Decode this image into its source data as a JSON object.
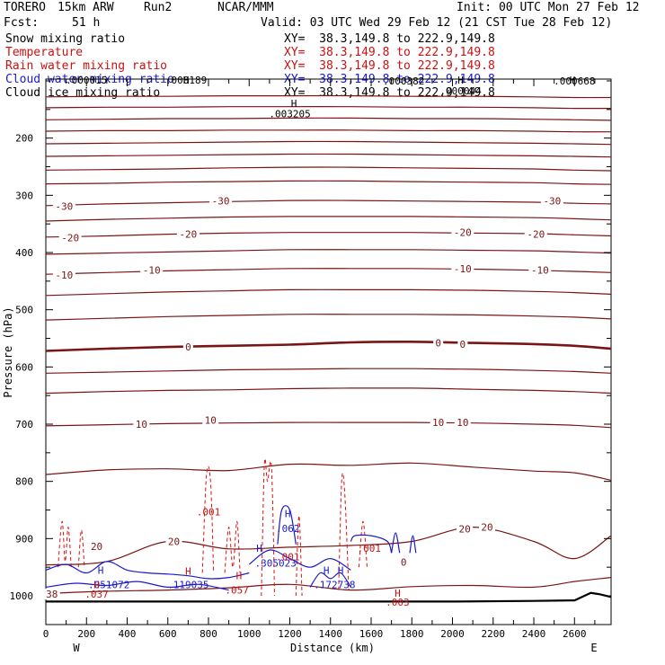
{
  "header": {
    "model": "TORERO",
    "resolution": "15km ARW",
    "run": "Run2",
    "org": "NCAR/MMM",
    "init": "Init: 00 UTC Mon 27 Feb 12",
    "fcst_label": "Fcst:",
    "fcst_hours": "51 h",
    "valid": "Valid: 03 UTC Wed 29 Feb 12 (21 CST Tue 28 Feb 12)"
  },
  "legend": [
    {
      "label": "Snow mixing ratio",
      "xy": "XY=  38.3,149.8 to 222.9,149.8",
      "color": "#000000"
    },
    {
      "label": "Temperature",
      "xy": "XY=  38.3,149.8 to 222.9,149.8",
      "color": "#cc1111"
    },
    {
      "label": "Rain water mixing ratio",
      "xy": "XY=  38.3,149.8 to 222.9,149.8",
      "color": "#cc1111"
    },
    {
      "label": "Cloud water mixing ratio",
      "xy": "XY=  38.3,149.8 to 222.9,149.8",
      "color": "#1a1acc"
    },
    {
      "label": "Cloud ice mixing ratio",
      "xy": "XY=  38.3,149.8 to 222.9,149.8",
      "color": "#000000"
    }
  ],
  "chart_data": {
    "type": "cross-section contour",
    "xlabel": "Distance (km)",
    "ylabel": "Pressure (hPa)",
    "xlim": [
      0,
      2780
    ],
    "ylim": [
      1015,
      100
    ],
    "x_ticks": [
      0,
      100,
      200,
      300,
      400,
      500,
      600,
      700,
      800,
      900,
      1000,
      1100,
      1200,
      1300,
      1400,
      1500,
      1600,
      1700,
      1800,
      1900,
      2000,
      2100,
      2200,
      2300,
      2400,
      2500,
      2600,
      2700
    ],
    "x_tick_labels": [
      "0",
      "200",
      "400",
      "600",
      "800",
      "1000",
      "1200",
      "1400",
      "1600",
      "1800",
      "2000",
      "2200",
      "2400",
      "2600"
    ],
    "x_tick_label_values": [
      0,
      200,
      400,
      600,
      800,
      1000,
      1200,
      1400,
      1600,
      1800,
      2000,
      2200,
      2400,
      2600
    ],
    "y_ticks": [
      100,
      150,
      200,
      250,
      300,
      350,
      400,
      450,
      500,
      550,
      600,
      650,
      700,
      750,
      800,
      850,
      900,
      950,
      1000
    ],
    "y_tick_labels": [
      "200",
      "300",
      "400",
      "500",
      "600",
      "700",
      "800",
      "900",
      "1000"
    ],
    "y_tick_label_values": [
      200,
      300,
      400,
      500,
      600,
      700,
      800,
      900,
      1000
    ],
    "direction_left": "W",
    "direction_right": "E",
    "x_nodes": [
      0,
      300,
      600,
      900,
      1200,
      1500,
      1800,
      2100,
      2400,
      2600,
      2780
    ],
    "isotherms": [
      {
        "p": [
          128,
          127,
          127,
          126,
          126,
          126,
          127,
          127,
          128,
          129,
          129
        ]
      },
      {
        "p": [
          147,
          146,
          146,
          145,
          145,
          145,
          146,
          146,
          147,
          148,
          148
        ]
      },
      {
        "p": [
          168,
          167,
          166,
          166,
          165,
          165,
          166,
          166,
          167,
          168,
          169
        ]
      },
      {
        "p": [
          188,
          187,
          187,
          186,
          186,
          186,
          187,
          187,
          188,
          189,
          189
        ]
      },
      {
        "p": [
          210,
          209,
          208,
          207,
          206,
          206,
          207,
          208,
          209,
          210,
          211
        ]
      },
      {
        "p": [
          232,
          231,
          230,
          229,
          228,
          228,
          229,
          230,
          231,
          232,
          233
        ]
      },
      {
        "p": [
          256,
          255,
          254,
          252,
          251,
          251,
          252,
          253,
          254,
          256,
          257
        ]
      },
      {
        "p": [
          280,
          279,
          277,
          276,
          275,
          275,
          276,
          277,
          278,
          280,
          281
        ]
      },
      {
        "p": [
          318,
          315,
          313,
          311,
          309,
          309,
          310,
          311,
          312,
          314,
          315
        ],
        "label": "-30"
      },
      {
        "p": [
          345,
          342,
          340,
          338,
          337,
          337,
          337,
          338,
          339,
          341,
          343
        ]
      },
      {
        "p": [
          373,
          371,
          368,
          366,
          365,
          365,
          365,
          366,
          367,
          369,
          371
        ],
        "label": "-20"
      },
      {
        "p": [
          403,
          401,
          399,
          397,
          395,
          395,
          395,
          396,
          397,
          399,
          401
        ]
      },
      {
        "p": [
          438,
          435,
          432,
          430,
          428,
          428,
          428,
          429,
          431,
          433,
          435
        ],
        "label": "-10"
      },
      {
        "p": [
          475,
          472,
          469,
          467,
          465,
          465,
          465,
          466,
          468,
          470,
          473
        ]
      },
      {
        "p": [
          518,
          515,
          512,
          510,
          508,
          508,
          508,
          509,
          511,
          513,
          516
        ]
      },
      {
        "p": [
          572,
          568,
          565,
          563,
          561,
          557,
          556,
          558,
          560,
          563,
          568
        ],
        "label": "0",
        "bold": true
      },
      {
        "p": [
          611,
          609,
          607,
          605,
          604,
          603,
          603,
          604,
          606,
          608,
          611
        ]
      },
      {
        "p": [
          646,
          643,
          641,
          640,
          638,
          637,
          637,
          639,
          641,
          643,
          646
        ]
      },
      {
        "p": [
          703,
          701,
          699,
          698,
          697,
          697,
          697,
          698,
          700,
          702,
          706
        ],
        "label": "10"
      },
      {
        "p": [
          788,
          780,
          778,
          781,
          770,
          772,
          768,
          775,
          782,
          785,
          798
        ]
      },
      {
        "p": [
          946,
          940,
          905,
          918,
          915,
          912,
          905,
          880,
          905,
          935,
          895
        ],
        "label": "20"
      },
      {
        "p": [
          996,
          992,
          990,
          986,
          980,
          990,
          984,
          982,
          985,
          975,
          968
        ]
      }
    ],
    "contour_labels": [
      {
        "text": "-30",
        "x": 90,
        "p": 319
      },
      {
        "text": "-30",
        "x": 860,
        "p": 310
      },
      {
        "text": "-30",
        "x": 2490,
        "p": 310
      },
      {
        "text": "-20",
        "x": 120,
        "p": 374
      },
      {
        "text": "-20",
        "x": 700,
        "p": 368
      },
      {
        "text": "-20",
        "x": 2050,
        "p": 365
      },
      {
        "text": "-20",
        "x": 2410,
        "p": 368
      },
      {
        "text": "-10",
        "x": 90,
        "p": 439
      },
      {
        "text": "-10",
        "x": 520,
        "p": 431
      },
      {
        "text": "-10",
        "x": 2050,
        "p": 428
      },
      {
        "text": "-10",
        "x": 2430,
        "p": 431
      },
      {
        "text": "0",
        "x": 700,
        "p": 565
      },
      {
        "text": "0",
        "x": 1930,
        "p": 558
      },
      {
        "text": "0",
        "x": 2050,
        "p": 560
      },
      {
        "text": "10",
        "x": 470,
        "p": 700
      },
      {
        "text": "10",
        "x": 810,
        "p": 693
      },
      {
        "text": "10",
        "x": 1930,
        "p": 697
      },
      {
        "text": "10",
        "x": 2050,
        "p": 697
      },
      {
        "text": "20",
        "x": 250,
        "p": 914
      },
      {
        "text": "20",
        "x": 630,
        "p": 905
      },
      {
        "text": "20",
        "x": 2060,
        "p": 883
      },
      {
        "text": "20",
        "x": 2170,
        "p": 880
      },
      {
        "text": "0",
        "x": 1760,
        "p": 941
      },
      {
        "text": "38",
        "x": 30,
        "p": 997
      }
    ],
    "annotations": [
      {
        "text": ".000015",
        "x": 200,
        "p": 85,
        "color": "#000000"
      },
      {
        "text": "H",
        "x": 690,
        "p": 78,
        "color": "#000000",
        "marker": true
      },
      {
        "text": ".000189",
        "x": 690,
        "p": 88,
        "color": "#000000"
      },
      {
        "text": "H",
        "x": 1220,
        "p": 139,
        "color": "#000000",
        "marker": true
      },
      {
        "text": ".003205",
        "x": 1200,
        "p": 157,
        "color": "#000000"
      },
      {
        "text": ".000382",
        "x": 1760,
        "p": 100,
        "color": "#000000"
      },
      {
        "text": "H",
        "x": 2040,
        "p": 89,
        "color": "#000000",
        "marker": true
      },
      {
        "text": ".000044",
        "x": 2040,
        "p": 117,
        "color": "#000000"
      },
      {
        "text": "H",
        "x": 2590,
        "p": 85,
        "color": "#000000",
        "marker": true
      },
      {
        "text": ".000668",
        "x": 2600,
        "p": 100,
        "color": "#000000"
      },
      {
        "text": ".001",
        "x": 800,
        "p": 853,
        "color": "#cc1111"
      },
      {
        "text": "H",
        "x": 1190,
        "p": 856,
        "color": "#1a1acc",
        "marker": true
      },
      {
        "text": ".062",
        "x": 1190,
        "p": 882,
        "color": "#1a1acc"
      },
      {
        "text": "H",
        "x": 1050,
        "p": 917,
        "color": "#1a1acc",
        "marker": true
      },
      {
        "text": ".305023",
        "x": 1130,
        "p": 943,
        "color": "#1a1acc"
      },
      {
        "text": ".001",
        "x": 1190,
        "p": 932,
        "color": "#cc1111"
      },
      {
        "text": ".001",
        "x": 1590,
        "p": 917,
        "color": "#cc1111"
      },
      {
        "text": "H",
        "x": 700,
        "p": 957,
        "color": "#cc1111",
        "marker": true
      },
      {
        "text": "H",
        "x": 950,
        "p": 965,
        "color": "#cc1111",
        "marker": true
      },
      {
        "text": ".057",
        "x": 940,
        "p": 990,
        "color": "#cc1111"
      },
      {
        "text": "H",
        "x": 270,
        "p": 955,
        "color": "#1a1acc",
        "marker": true
      },
      {
        "text": ".051072",
        "x": 310,
        "p": 980,
        "color": "#1a1acc"
      },
      {
        "text": ".119035",
        "x": 700,
        "p": 980,
        "color": "#1a1acc"
      },
      {
        "text": "H",
        "x": 1380,
        "p": 955,
        "color": "#1a1acc",
        "marker": true
      },
      {
        "text": "H",
        "x": 1450,
        "p": 955,
        "color": "#1a1acc",
        "marker": true
      },
      {
        "text": ".172738",
        "x": 1420,
        "p": 980,
        "color": "#1a1acc"
      },
      {
        "text": "H",
        "x": 250,
        "p": 980,
        "color": "#cc1111",
        "marker": true
      },
      {
        "text": ".037",
        "x": 250,
        "p": 997,
        "color": "#cc1111"
      },
      {
        "text": "H",
        "x": 1730,
        "p": 995,
        "color": "#cc1111",
        "marker": true
      },
      {
        "text": ".003",
        "x": 1730,
        "p": 1011,
        "color": "#cc1111"
      }
    ],
    "rain_water_contours": [
      {
        "x": [
          60,
          80,
          95,
          110,
          125
        ],
        "p": [
          950,
          870,
          940,
          880,
          950
        ]
      },
      {
        "x": [
          160,
          175,
          190
        ],
        "p": [
          950,
          885,
          950
        ]
      },
      {
        "x": [
          770,
          790,
          810,
          825
        ],
        "p": [
          960,
          790,
          800,
          960
        ]
      },
      {
        "x": [
          880,
          900,
          920,
          940,
          955
        ],
        "p": [
          960,
          880,
          950,
          870,
          960
        ]
      },
      {
        "x": [
          1060,
          1075,
          1090,
          1110,
          1125
        ],
        "p": [
          1000,
          770,
          800,
          775,
          1000
        ]
      },
      {
        "x": [
          1230,
          1245,
          1260
        ],
        "p": [
          1000,
          860,
          1000
        ]
      },
      {
        "x": [
          1440,
          1455,
          1470,
          1490
        ],
        "p": [
          990,
          800,
          820,
          990
        ]
      },
      {
        "x": [
          1540,
          1560,
          1580
        ],
        "p": [
          950,
          870,
          950
        ]
      }
    ],
    "cloud_water_contours": [
      {
        "x": [
          0,
          100,
          200,
          300,
          400,
          500,
          600,
          700,
          800,
          900,
          1000
        ],
        "p": [
          955,
          945,
          960,
          940,
          955,
          960,
          962,
          965,
          970,
          968,
          960
        ]
      },
      {
        "x": [
          0,
          150,
          300,
          450,
          600,
          750,
          900
        ],
        "p": [
          985,
          978,
          982,
          975,
          985,
          980,
          990
        ]
      },
      {
        "x": [
          1140,
          1160,
          1200,
          1230
        ],
        "p": [
          910,
          850,
          850,
          910
        ]
      },
      {
        "x": [
          1000,
          1100,
          1200,
          1300,
          1400,
          1500
        ],
        "p": [
          945,
          920,
          935,
          950,
          935,
          955
        ]
      },
      {
        "x": [
          1300,
          1350,
          1400,
          1450,
          1500
        ],
        "p": [
          985,
          960,
          970,
          960,
          985
        ]
      },
      {
        "x": [
          1500,
          1520,
          1600,
          1680,
          1700
        ],
        "p": [
          905,
          895,
          895,
          905,
          925
        ]
      },
      {
        "x": [
          1700,
          1720,
          1740
        ],
        "p": [
          925,
          890,
          925
        ]
      },
      {
        "x": [
          1790,
          1805,
          1820
        ],
        "p": [
          925,
          895,
          925
        ]
      }
    ],
    "terrain": {
      "x": [
        0,
        1000,
        2000,
        2400,
        2600,
        2680,
        2720,
        2780
      ],
      "p": [
        1010,
        1010,
        1010,
        1009,
        1008,
        995,
        997,
        1002
      ]
    }
  }
}
